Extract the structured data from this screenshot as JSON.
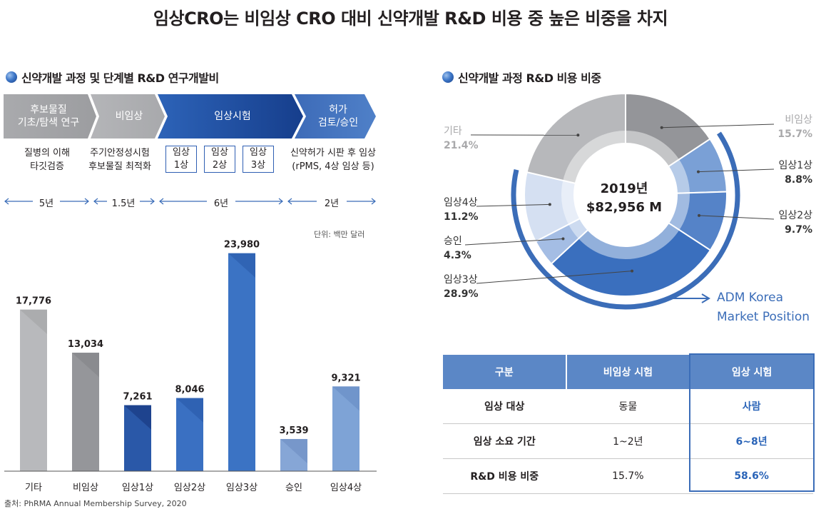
{
  "title": "임상CRO는 비임상 CRO 대비 신약개발 R&D 비용 중 높은 비중을 차지",
  "left": {
    "section_title": "신약개발 과정 및 단계별 R&D 연구개발비",
    "stages": [
      {
        "label": "후보물질\n기초/탐색 연구",
        "desc": "질병의 이해\n타깃검증",
        "duration": "5년"
      },
      {
        "label": "비임상",
        "desc": "주기안정성시험\n후보물질 최적화",
        "duration": "1.5년"
      },
      {
        "label": "임상시험",
        "phases": [
          "임상\n1상",
          "임상\n2상",
          "임상\n3상"
        ],
        "duration": "6년"
      },
      {
        "label": "허가\n검토/승인",
        "desc": "신약허가 시판 후 임상\n(rPMS, 4상 임상 등)",
        "duration": "2년"
      }
    ],
    "unit": "단위: 백만 달러",
    "source": "출처: PhRMA Annual Membership Survey, 2020"
  },
  "right": {
    "section_title": "신약개발 과정 R&D 비용 비중",
    "center_year": "2019년",
    "center_total": "$82,956 M",
    "adm_label": "ADM Korea\nMarket Position"
  },
  "table": {
    "headers": [
      "구분",
      "비임상 시험",
      "임상 시험"
    ],
    "rows": [
      [
        "임상 대상",
        "동물",
        "사람"
      ],
      [
        "임상 소요 기간",
        "1~2년",
        "6~8년"
      ],
      [
        "R&D 비용 비중",
        "15.7%",
        "58.6%"
      ]
    ]
  },
  "colors": {
    "gray_light": "#b3b4b7",
    "gray_dark": "#8e8f92",
    "blue_dark": "#1f4f9e",
    "blue_mid": "#3c73c2",
    "blue_light": "#7fa2d4",
    "blue_pale": "#d7e1f1",
    "accent": "#3b6db8"
  },
  "chart_data": [
    {
      "type": "bar",
      "title": "신약개발 과정 및 단계별 R&D 연구개발비",
      "ylabel": "단위: 백만 달러",
      "categories": [
        "기타",
        "비임상",
        "임상1상",
        "임상2상",
        "임상3상",
        "승인",
        "임상4상"
      ],
      "values": [
        17776,
        13034,
        7261,
        8046,
        23980,
        3539,
        9321
      ],
      "value_labels": [
        "17,776",
        "13,034",
        "7,261",
        "8,046",
        "23,980",
        "3,539",
        "9,321"
      ],
      "ylim": [
        0,
        26000
      ]
    },
    {
      "type": "pie",
      "title": "신약개발 과정 R&D 비용 비중",
      "labels": [
        "비임상",
        "임상1상",
        "임상2상",
        "임상3상",
        "승인",
        "임상4상",
        "기타"
      ],
      "values": [
        15.7,
        8.8,
        9.7,
        28.9,
        4.3,
        11.2,
        21.4
      ],
      "value_labels": [
        "15.7%",
        "8.8%",
        "9.7%",
        "28.9%",
        "4.3%",
        "11.2%",
        "21.4%"
      ],
      "total": "$82,956 M",
      "year": "2019년"
    }
  ]
}
